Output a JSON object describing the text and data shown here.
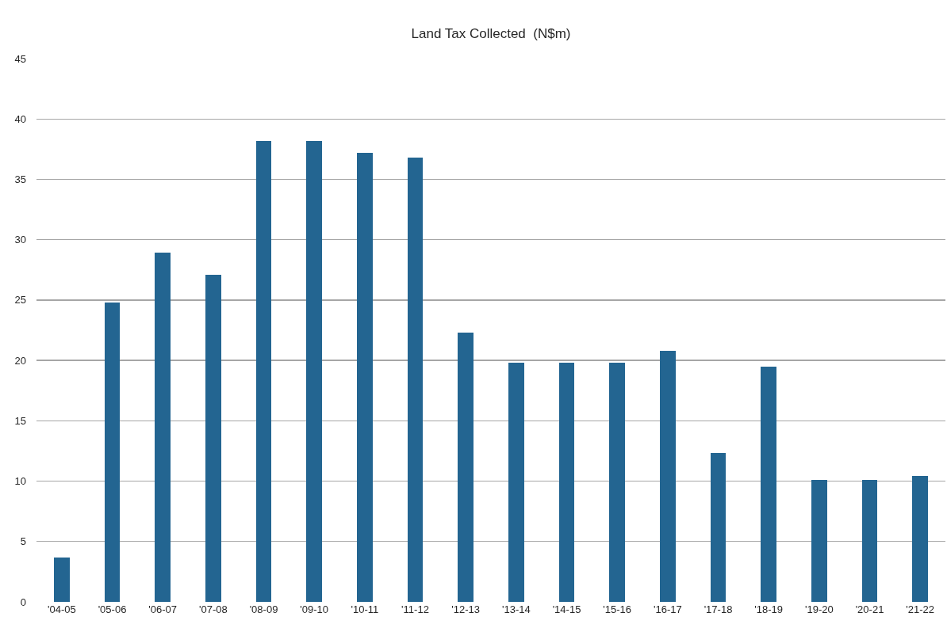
{
  "chart_data": {
    "type": "bar",
    "title": "Land Tax Collected  (N$m)",
    "categories": [
      "'04-05",
      "'05-06",
      "'06-07",
      "'07-08",
      "'08-09",
      "'09-10",
      "'10-11",
      "'11-12",
      "'12-13",
      "'13-14",
      "'14-15",
      "'15-16",
      "'16-17",
      "'17-18",
      "'18-19",
      "'19-20",
      "'20-21",
      "'21-22"
    ],
    "values": [
      3.7,
      24.8,
      28.9,
      27.1,
      38.2,
      38.2,
      37.2,
      36.8,
      22.3,
      19.8,
      19.8,
      19.8,
      20.8,
      12.3,
      19.5,
      10.1,
      10.1,
      10.4
    ],
    "color": "#236591",
    "ylim": [
      0,
      45
    ],
    "yticks": [
      0,
      5,
      10,
      15,
      20,
      25,
      30,
      35,
      40,
      45
    ],
    "grid": "y"
  }
}
